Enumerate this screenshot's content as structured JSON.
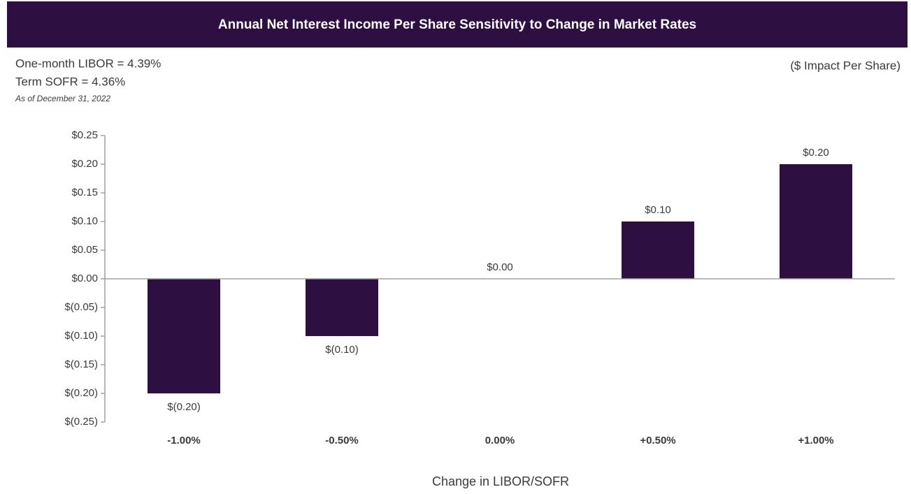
{
  "chart_data": {
    "type": "bar",
    "title": "Annual Net Interest Income Per Share Sensitivity to Change in Market Rates",
    "annotations": [
      "One-month LIBOR = 4.39%",
      "Term SOFR = 4.36%",
      "As of December 31, 2022"
    ],
    "unit_label": "($ Impact Per Share)",
    "xlabel": "Change in LIBOR/SOFR",
    "categories": [
      "-1.00%",
      "-0.50%",
      "0.00%",
      "+0.50%",
      "+1.00%"
    ],
    "values": [
      -0.2,
      -0.1,
      0,
      0.1,
      0.2
    ],
    "value_labels": [
      "$(0.20)",
      "$(0.10)",
      "$0.00",
      "$0.10",
      "$0.20"
    ],
    "color": "#2d0f42",
    "ylim": [
      -0.25,
      0.25
    ],
    "yticks": [
      {
        "value": 0.25,
        "label": "$0.25"
      },
      {
        "value": 0.2,
        "label": "$0.20"
      },
      {
        "value": 0.15,
        "label": "$0.15"
      },
      {
        "value": 0.1,
        "label": "$0.10"
      },
      {
        "value": 0.05,
        "label": "$0.05"
      },
      {
        "value": 0,
        "label": "$0.00"
      },
      {
        "value": -0.05,
        "label": "$(0.05)"
      },
      {
        "value": -0.1,
        "label": "$(0.10)"
      },
      {
        "value": -0.15,
        "label": "$(0.15)"
      },
      {
        "value": -0.2,
        "label": "$(0.20)"
      },
      {
        "value": -0.25,
        "label": "$(0.25)"
      }
    ],
    "grid": false
  }
}
